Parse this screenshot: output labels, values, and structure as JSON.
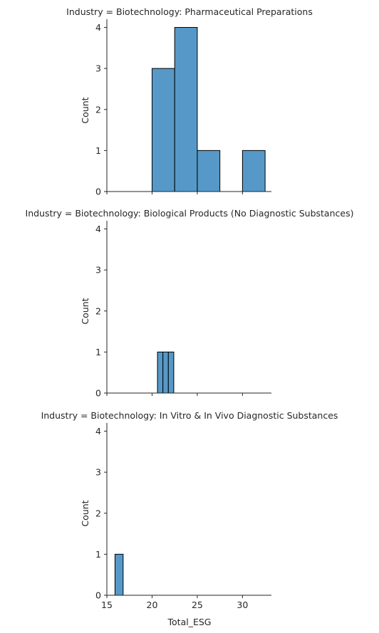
{
  "chart_data": {
    "type": "bar",
    "shared_x": true,
    "shared_y": true,
    "xlabel": "Total_ESG",
    "ylabel": "Count",
    "xlim": [
      15.0,
      33.2
    ],
    "ylim": [
      0,
      4.2
    ],
    "xticks": [
      15,
      20,
      25,
      30
    ],
    "yticks": [
      0,
      1,
      2,
      3,
      4
    ],
    "bar_color": "#5699c8",
    "edge_color": "#000000",
    "panels": [
      {
        "title": "Industry = Biotechnology: Pharmaceutical Preparations",
        "bins": [
          {
            "x0": 20.0,
            "x1": 22.5,
            "count": 3
          },
          {
            "x0": 22.5,
            "x1": 25.0,
            "count": 4
          },
          {
            "x0": 25.0,
            "x1": 27.5,
            "count": 1
          },
          {
            "x0": 30.0,
            "x1": 32.5,
            "count": 1
          }
        ]
      },
      {
        "title": "Industry = Biotechnology: Biological Products (No Diagnostic Substances)",
        "bins": [
          {
            "x0": 20.6,
            "x1": 21.2,
            "count": 1
          },
          {
            "x0": 21.2,
            "x1": 21.8,
            "count": 1
          },
          {
            "x0": 21.8,
            "x1": 22.4,
            "count": 1
          }
        ]
      },
      {
        "title": "Industry = Biotechnology: In Vitro & In Vivo Diagnostic Substances",
        "bins": [
          {
            "x0": 15.9,
            "x1": 16.8,
            "count": 1
          }
        ]
      }
    ]
  }
}
